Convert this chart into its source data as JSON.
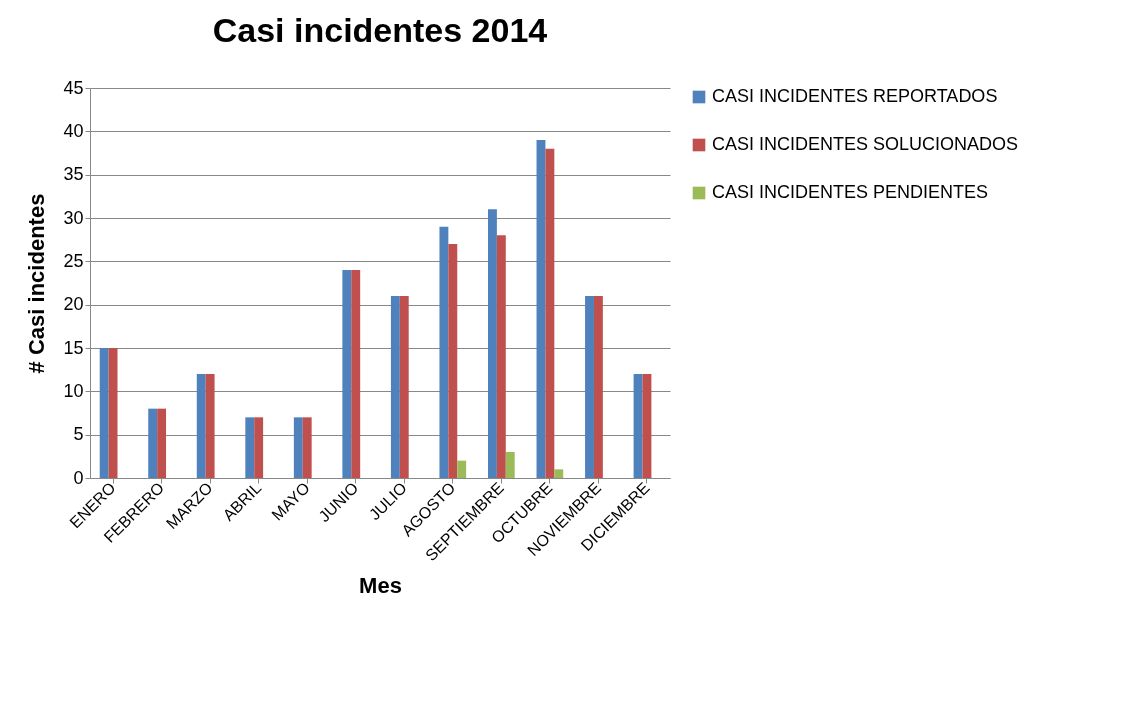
{
  "chart_data": {
    "type": "bar",
    "title": "Casi incidentes 2014",
    "xlabel": "Mes",
    "ylabel": "# Casi incidentes",
    "categories": [
      "ENERO",
      "FEBRERO",
      "MARZO",
      "ABRIL",
      "MAYO",
      "JUNIO",
      "JULIO",
      "AGOSTO",
      "SEPTIEMBRE",
      "OCTUBRE",
      "NOVIEMBRE",
      "DICIEMBRE"
    ],
    "series": [
      {
        "name": "CASI INCIDENTES REPORTADOS",
        "color": "#4f81bd",
        "values": [
          15,
          8,
          12,
          7,
          7,
          24,
          21,
          29,
          31,
          39,
          21,
          12
        ]
      },
      {
        "name": "CASI INCIDENTES SOLUCIONADOS",
        "color": "#c0504d",
        "values": [
          15,
          8,
          12,
          7,
          7,
          24,
          21,
          27,
          28,
          38,
          21,
          12
        ]
      },
      {
        "name": "CASI INCIDENTES PENDIENTES",
        "color": "#9bbb59",
        "values": [
          0,
          0,
          0,
          0,
          0,
          0,
          0,
          2,
          3,
          1,
          0,
          0
        ]
      }
    ],
    "ylim": [
      0,
      45
    ],
    "yticks": [
      0,
      5,
      10,
      15,
      20,
      25,
      30,
      35,
      40,
      45
    ],
    "grid": "y",
    "legend": "right"
  }
}
